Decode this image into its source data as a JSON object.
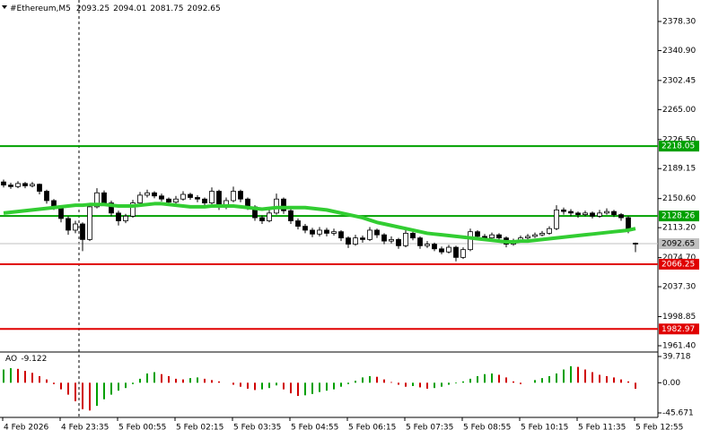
{
  "chart_data": {
    "type": "candlestick",
    "header": {
      "symbol": "#Ethereum,M5"
    },
    "candles": [
      [
        2172,
        2175,
        2165,
        2168
      ],
      [
        2168,
        2171,
        2163,
        2166
      ],
      [
        2166,
        2173,
        2164,
        2170
      ],
      [
        2170,
        2172,
        2164,
        2167
      ],
      [
        2167,
        2172,
        2165,
        2169
      ],
      [
        2169,
        2170,
        2156,
        2160
      ],
      [
        2160,
        2162,
        2144,
        2148
      ],
      [
        2148,
        2150,
        2136,
        2140
      ],
      [
        2140,
        2142,
        2120,
        2125
      ],
      [
        2125,
        2128,
        2104,
        2110
      ],
      [
        2110,
        2122,
        2106,
        2118
      ],
      [
        2118,
        2120,
        2083,
        2098
      ],
      [
        2098,
        2144,
        2096,
        2140
      ],
      [
        2140,
        2164,
        2138,
        2158
      ],
      [
        2158,
        2161,
        2142,
        2145
      ],
      [
        2145,
        2148,
        2128,
        2132
      ],
      [
        2132,
        2135,
        2116,
        2122
      ],
      [
        2122,
        2131,
        2119,
        2128
      ],
      [
        2128,
        2149,
        2126,
        2145
      ],
      [
        2145,
        2159,
        2143,
        2155
      ],
      [
        2155,
        2162,
        2152,
        2158
      ],
      [
        2158,
        2160,
        2151,
        2154
      ],
      [
        2154,
        2157,
        2147,
        2150
      ],
      [
        2150,
        2152,
        2142,
        2146
      ],
      [
        2146,
        2154,
        2143,
        2150
      ],
      [
        2150,
        2160,
        2148,
        2156
      ],
      [
        2156,
        2158,
        2149,
        2152
      ],
      [
        2152,
        2155,
        2146,
        2150
      ],
      [
        2150,
        2152,
        2141,
        2145
      ],
      [
        2145,
        2165,
        2143,
        2160
      ],
      [
        2160,
        2162,
        2136,
        2140
      ],
      [
        2140,
        2152,
        2137,
        2148
      ],
      [
        2148,
        2166,
        2146,
        2160
      ],
      [
        2160,
        2162,
        2146,
        2150
      ],
      [
        2150,
        2152,
        2136,
        2140
      ],
      [
        2140,
        2142,
        2122,
        2126
      ],
      [
        2126,
        2129,
        2118,
        2122
      ],
      [
        2122,
        2136,
        2120,
        2132
      ],
      [
        2132,
        2157,
        2130,
        2150
      ],
      [
        2150,
        2152,
        2131,
        2135
      ],
      [
        2135,
        2138,
        2118,
        2122
      ],
      [
        2122,
        2125,
        2111,
        2115
      ],
      [
        2115,
        2118,
        2106,
        2110
      ],
      [
        2110,
        2113,
        2101,
        2105
      ],
      [
        2105,
        2114,
        2102,
        2110
      ],
      [
        2110,
        2113,
        2102,
        2106
      ],
      [
        2106,
        2112,
        2103,
        2108
      ],
      [
        2108,
        2110,
        2096,
        2100
      ],
      [
        2100,
        2102,
        2087,
        2092
      ],
      [
        2092,
        2104,
        2090,
        2100
      ],
      [
        2100,
        2103,
        2094,
        2098
      ],
      [
        2098,
        2114,
        2096,
        2110
      ],
      [
        2110,
        2112,
        2100,
        2104
      ],
      [
        2104,
        2106,
        2092,
        2096
      ],
      [
        2096,
        2102,
        2093,
        2098
      ],
      [
        2098,
        2100,
        2086,
        2090
      ],
      [
        2090,
        2110,
        2088,
        2106
      ],
      [
        2106,
        2108,
        2097,
        2100
      ],
      [
        2100,
        2102,
        2086,
        2090
      ],
      [
        2090,
        2096,
        2087,
        2092
      ],
      [
        2092,
        2094,
        2083,
        2086
      ],
      [
        2086,
        2089,
        2079,
        2082
      ],
      [
        2082,
        2091,
        2080,
        2088
      ],
      [
        2088,
        2090,
        2070,
        2075
      ],
      [
        2075,
        2088,
        2073,
        2085
      ],
      [
        2085,
        2112,
        2083,
        2108
      ],
      [
        2108,
        2110,
        2098,
        2102
      ],
      [
        2102,
        2105,
        2097,
        2100
      ],
      [
        2100,
        2107,
        2098,
        2104
      ],
      [
        2104,
        2106,
        2097,
        2100
      ],
      [
        2100,
        2102,
        2088,
        2092
      ],
      [
        2092,
        2099,
        2090,
        2096
      ],
      [
        2096,
        2103,
        2094,
        2100
      ],
      [
        2100,
        2105,
        2098,
        2102
      ],
      [
        2102,
        2107,
        2100,
        2104
      ],
      [
        2104,
        2109,
        2102,
        2106
      ],
      [
        2106,
        2115,
        2104,
        2112
      ],
      [
        2112,
        2142,
        2110,
        2136
      ],
      [
        2136,
        2139,
        2130,
        2134
      ],
      [
        2134,
        2137,
        2128,
        2132
      ],
      [
        2132,
        2134,
        2126,
        2130
      ],
      [
        2130,
        2135,
        2128,
        2132
      ],
      [
        2132,
        2134,
        2125,
        2128
      ],
      [
        2128,
        2136,
        2126,
        2132
      ],
      [
        2132,
        2138,
        2130,
        2134
      ],
      [
        2134,
        2136,
        2127,
        2130
      ],
      [
        2130,
        2132,
        2122,
        2126
      ],
      [
        2126,
        2128,
        2106,
        2110
      ],
      [
        2093.25,
        2094.01,
        2081.75,
        2092.65
      ]
    ],
    "ma": {
      "color": "#32cd32",
      "values": [
        2132,
        2133,
        2134,
        2135,
        2136,
        2137,
        2138,
        2139,
        2140,
        2141,
        2142,
        2142,
        2143,
        2143,
        2143,
        2142,
        2141,
        2141,
        2141,
        2142,
        2143,
        2144,
        2144,
        2143,
        2142,
        2141,
        2140,
        2140,
        2140,
        2141,
        2141,
        2141,
        2141,
        2140,
        2139,
        2138,
        2137,
        2138,
        2139,
        2139,
        2139,
        2139,
        2139,
        2138,
        2137,
        2136,
        2134,
        2132,
        2130,
        2128,
        2126,
        2123,
        2120,
        2118,
        2116,
        2114,
        2112,
        2110,
        2108,
        2106,
        2105,
        2104,
        2103,
        2102,
        2101,
        2100,
        2099,
        2098,
        2097,
        2096,
        2095,
        2095,
        2096,
        2096,
        2097,
        2098,
        2099,
        2100,
        2101,
        2102,
        2103,
        2104,
        2105,
        2106,
        2107,
        2108,
        2109,
        2110,
        2112
      ]
    },
    "ylim": [
      1954.5,
      2405.9
    ],
    "yticks": [
      {
        "value": 2378.3,
        "label": "2378.30"
      },
      {
        "value": 2340.9,
        "label": "2340.90"
      },
      {
        "value": 2302.45,
        "label": "2302.45"
      },
      {
        "value": 2265,
        "label": "2265.00"
      },
      {
        "value": 2226.5,
        "label": "2226.50"
      },
      {
        "value": 2189.15,
        "label": "2189.15"
      },
      {
        "value": 2150.6,
        "label": "2150.60"
      },
      {
        "value": 2113.2,
        "label": "2113.20"
      },
      {
        "value": 2074.7,
        "label": "2074.70"
      },
      {
        "value": 2037.3,
        "label": "2037.30"
      },
      {
        "value": 1998.85,
        "label": "1998.85"
      },
      {
        "value": 1961.4,
        "label": "1961.40"
      }
    ],
    "levels": [
      {
        "value": 2218.05,
        "color": "#00a000"
      },
      {
        "value": 2128.26,
        "color": "#00a000"
      },
      {
        "value": 2066.25,
        "color": "#e00000"
      },
      {
        "value": 1982.97,
        "color": "#e00000"
      }
    ],
    "bid_color": "#c0c0c0",
    "ao": {
      "name": "AO",
      "up_color": "#00a000",
      "down_color": "#d00000",
      "values": [
        20,
        22,
        21,
        18,
        15,
        10,
        5,
        -2,
        -10,
        -18,
        -28,
        -40,
        -42,
        -35,
        -25,
        -18,
        -12,
        -8,
        -2,
        6,
        14,
        16,
        13,
        10,
        6,
        5,
        7,
        8,
        6,
        4,
        2,
        0,
        -3,
        -6,
        -9,
        -11,
        -10,
        -8,
        -4,
        -10,
        -16,
        -20,
        -19,
        -17,
        -14,
        -12,
        -10,
        -6,
        -2,
        3,
        8,
        10,
        9,
        5,
        1,
        -3,
        -6,
        -5,
        -7,
        -9,
        -8,
        -6,
        -3,
        -1,
        2,
        6,
        10,
        13,
        14,
        12,
        8,
        2,
        -2,
        0,
        4,
        7,
        10,
        14,
        20,
        25,
        24,
        20,
        16,
        12,
        10,
        8,
        5,
        2,
        -9.122
      ],
      "ylim": [
        -52.45,
        45.14
      ],
      "yticks": [
        39.718,
        {
          "value": 0,
          "label": "0.00"
        },
        -45.671
      ]
    },
    "time_labels": [
      "4 Feb 2026",
      "4 Feb 23:35",
      "5 Feb 00:55",
      "5 Feb 02:15",
      "5 Feb 03:35",
      "5 Feb 04:55",
      "5 Feb 06:15",
      "5 Feb 07:35",
      "5 Feb 08:55",
      "5 Feb 10:15",
      "5 Feb 11:35",
      "5 Feb 12:55"
    ]
  }
}
